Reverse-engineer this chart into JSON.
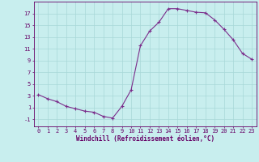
{
  "x": [
    0,
    1,
    2,
    3,
    4,
    5,
    6,
    7,
    8,
    9,
    10,
    11,
    12,
    13,
    14,
    15,
    16,
    17,
    18,
    19,
    20,
    21,
    22,
    23
  ],
  "y": [
    3.2,
    2.5,
    2.0,
    1.2,
    0.8,
    0.4,
    0.2,
    -0.5,
    -0.8,
    1.2,
    4.0,
    11.5,
    14.0,
    15.5,
    17.8,
    17.8,
    17.5,
    17.2,
    17.1,
    15.9,
    14.3,
    12.5,
    10.2,
    9.2
  ],
  "line_color": "#7B2D8B",
  "marker": "+",
  "marker_size": 3,
  "marker_color": "#7B2D8B",
  "bg_color": "#c8eeee",
  "grid_color": "#a8d8d8",
  "xlabel": "Windchill (Refroidissement éolien,°C)",
  "yticks": [
    -1,
    1,
    3,
    5,
    7,
    9,
    11,
    13,
    15,
    17
  ],
  "ylim": [
    -2.2,
    19.0
  ],
  "xlim": [
    -0.5,
    23.5
  ],
  "xticks": [
    0,
    1,
    2,
    3,
    4,
    5,
    6,
    7,
    8,
    9,
    10,
    11,
    12,
    13,
    14,
    15,
    16,
    17,
    18,
    19,
    20,
    21,
    22,
    23
  ],
  "xlabel_color": "#660066",
  "tick_color": "#660066",
  "axis_color": "#660066",
  "tick_fontsize": 5.0,
  "xlabel_fontsize": 5.5
}
